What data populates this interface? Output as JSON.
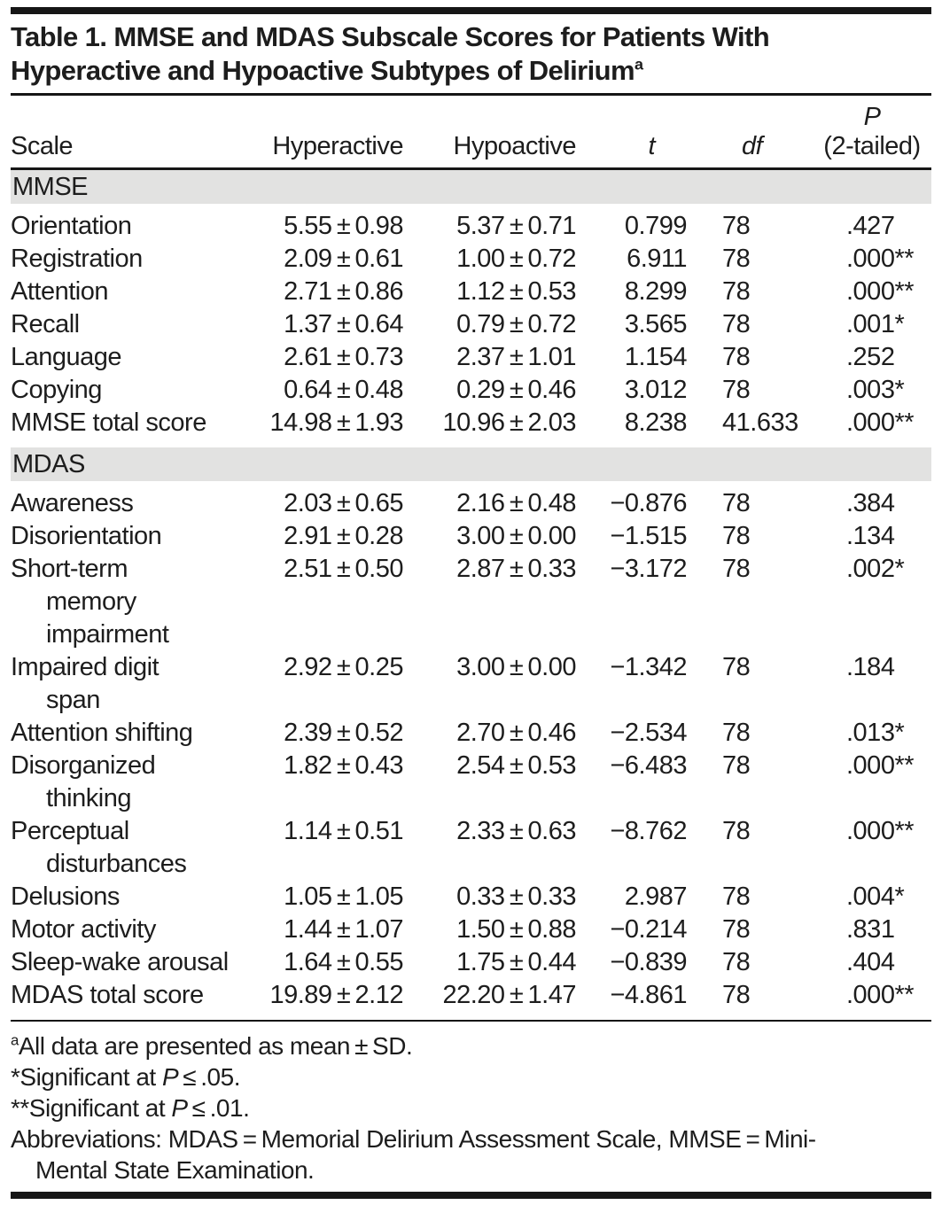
{
  "page": {
    "title": {
      "line1": "Table 1. MMSE and MDAS Subscale Scores for Patients With",
      "line2": "Hyperactive and Hypoactive Subtypes of Delirium",
      "superscript": "a"
    }
  },
  "table": {
    "type": "table",
    "header": {
      "scale": "Scale",
      "hyperactive": "Hyperactive",
      "hypoactive": "Hypoactive",
      "t": "t",
      "df": "df",
      "p_top": "P",
      "p_bottom": "(2-tailed)"
    },
    "sections": [
      {
        "label": "MMSE",
        "rows": [
          {
            "scale_lines": [
              "Orientation"
            ],
            "hyperactive": "5.55 ± 0.98",
            "hypoactive": "5.37 ± 0.71",
            "t": "0.799",
            "df": "78",
            "p": ".427"
          },
          {
            "scale_lines": [
              "Registration"
            ],
            "hyperactive": "2.09 ± 0.61",
            "hypoactive": "1.00 ± 0.72",
            "t": "6.911",
            "df": "78",
            "p": ".000**"
          },
          {
            "scale_lines": [
              "Attention"
            ],
            "hyperactive": "2.71 ± 0.86",
            "hypoactive": "1.12 ± 0.53",
            "t": "8.299",
            "df": "78",
            "p": ".000**"
          },
          {
            "scale_lines": [
              "Recall"
            ],
            "hyperactive": "1.37 ± 0.64",
            "hypoactive": "0.79 ± 0.72",
            "t": "3.565",
            "df": "78",
            "p": ".001*"
          },
          {
            "scale_lines": [
              "Language"
            ],
            "hyperactive": "2.61 ± 0.73",
            "hypoactive": "2.37 ± 1.01",
            "t": "1.154",
            "df": "78",
            "p": ".252"
          },
          {
            "scale_lines": [
              "Copying"
            ],
            "hyperactive": "0.64 ± 0.48",
            "hypoactive": "0.29 ± 0.46",
            "t": "3.012",
            "df": "78",
            "p": ".003*"
          },
          {
            "scale_lines": [
              "MMSE total score"
            ],
            "hyperactive": "14.98 ± 1.93",
            "hypoactive": "10.96 ± 2.03",
            "t": "8.238",
            "df": "41.633",
            "p": ".000**"
          }
        ]
      },
      {
        "label": "MDAS",
        "rows": [
          {
            "scale_lines": [
              "Awareness"
            ],
            "hyperactive": "2.03 ± 0.65",
            "hypoactive": "2.16 ± 0.48",
            "t": "−0.876",
            "df": "78",
            "p": ".384"
          },
          {
            "scale_lines": [
              "Disorientation"
            ],
            "hyperactive": "2.91 ± 0.28",
            "hypoactive": "3.00 ± 0.00",
            "t": "−1.515",
            "df": "78",
            "p": ".134"
          },
          {
            "scale_lines": [
              "Short-term",
              "memory",
              "impairment"
            ],
            "hyperactive": "2.51 ± 0.50",
            "hypoactive": "2.87 ± 0.33",
            "t": "−3.172",
            "df": "78",
            "p": ".002*"
          },
          {
            "scale_lines": [
              "Impaired digit",
              "span"
            ],
            "hyperactive": "2.92 ± 0.25",
            "hypoactive": "3.00 ± 0.00",
            "t": "−1.342",
            "df": "78",
            "p": ".184"
          },
          {
            "scale_lines": [
              "Attention shifting"
            ],
            "hyperactive": "2.39 ± 0.52",
            "hypoactive": "2.70 ± 0.46",
            "t": "−2.534",
            "df": "78",
            "p": ".013*"
          },
          {
            "scale_lines": [
              "Disorganized",
              "thinking"
            ],
            "hyperactive": "1.82 ± 0.43",
            "hypoactive": "2.54 ± 0.53",
            "t": "−6.483",
            "df": "78",
            "p": ".000**"
          },
          {
            "scale_lines": [
              "Perceptual",
              "disturbances"
            ],
            "hyperactive": "1.14 ± 0.51",
            "hypoactive": "2.33 ± 0.63",
            "t": "−8.762",
            "df": "78",
            "p": ".000**"
          },
          {
            "scale_lines": [
              "Delusions"
            ],
            "hyperactive": "1.05 ± 1.05",
            "hypoactive": "0.33 ± 0.33",
            "t": "2.987",
            "df": "78",
            "p": ".004*"
          },
          {
            "scale_lines": [
              "Motor activity"
            ],
            "hyperactive": "1.44 ± 1.07",
            "hypoactive": "1.50 ± 0.88",
            "t": "−0.214",
            "df": "78",
            "p": ".831"
          },
          {
            "scale_lines": [
              "Sleep-wake arousal"
            ],
            "hyperactive": "1.64 ± 0.55",
            "hypoactive": "1.75 ± 0.44",
            "t": "−0.839",
            "df": "78",
            "p": ".404"
          },
          {
            "scale_lines": [
              "MDAS total score"
            ],
            "hyperactive": "19.89 ± 2.12",
            "hypoactive": "22.20 ± 1.47",
            "t": "−4.861",
            "df": "78",
            "p": ".000**"
          }
        ]
      }
    ],
    "footnotes": [
      {
        "indent": false,
        "segments": [
          {
            "text": "a",
            "style": "sup"
          },
          {
            "text": "All data are presented as mean ± SD."
          }
        ]
      },
      {
        "indent": false,
        "segments": [
          {
            "text": "*Significant at "
          },
          {
            "text": "P",
            "style": "italic"
          },
          {
            "text": " ≤ .05."
          }
        ]
      },
      {
        "indent": false,
        "segments": [
          {
            "text": "**Significant at "
          },
          {
            "text": "P",
            "style": "italic"
          },
          {
            "text": " ≤ .01."
          }
        ]
      },
      {
        "indent": false,
        "segments": [
          {
            "text": "Abbreviations: MDAS = Memorial Delirium Assessment Scale, MMSE = Mini-"
          }
        ]
      },
      {
        "indent": true,
        "segments": [
          {
            "text": "Mental State Examination."
          }
        ]
      }
    ]
  },
  "colors": {
    "text": "#1d1d1d",
    "rule": "#161616",
    "section_band": "#e2e2e1",
    "background": "#ffffff"
  }
}
